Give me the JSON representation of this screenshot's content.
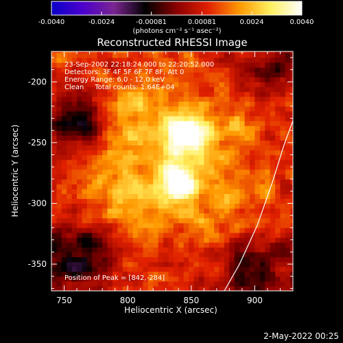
{
  "chart_data": {
    "type": "heatmap",
    "title": "Reconstructed RHESSI Image",
    "xlabel": "Heliocentric X (arcsec)",
    "ylabel": "Heliocentric Y (arcsec)",
    "xlim": [
      740,
      930
    ],
    "ylim": [
      -372,
      -175
    ],
    "x_ticks": [
      750,
      800,
      850,
      900
    ],
    "y_ticks": [
      -200,
      -250,
      -300,
      -350
    ],
    "colorbar": {
      "range": [
        -0.004,
        0.004
      ],
      "ticks": [
        "-0.0040",
        "-0.0024",
        "-0.00081",
        "0.00081",
        "0.0024",
        "0.0040"
      ],
      "unit_label": "(photons cm⁻² s⁻¹ asec⁻²)",
      "colors": [
        "#0a00c8",
        "#4c00cc",
        "#7a2590",
        "#000000",
        "#8a0000",
        "#e02000",
        "#ff9800",
        "#fff060",
        "#ffffff"
      ]
    },
    "annotations": [
      "23-Sep-2002 22:18:24.000 to 22:20:52.000",
      "Detectors: 3F 4F 5F 6F 7F 8F, Att 0",
      "Energy Range: 6.0 - 12.0 keV",
      "Clean     Total counts: 1.64E+04"
    ],
    "peak_label": "Position of Peak = [842,-284]",
    "peaks": [
      {
        "x": 842,
        "y": -284,
        "value": 0.004
      },
      {
        "x": 845,
        "y": -243,
        "value": 0.0036
      }
    ],
    "limb_curve": [
      [
        876,
        -372
      ],
      [
        888,
        -350
      ],
      [
        902,
        -318
      ],
      [
        914,
        -282
      ],
      [
        923,
        -252
      ],
      [
        930,
        -232
      ]
    ],
    "timestamp": "2-May-2022 00:25"
  }
}
